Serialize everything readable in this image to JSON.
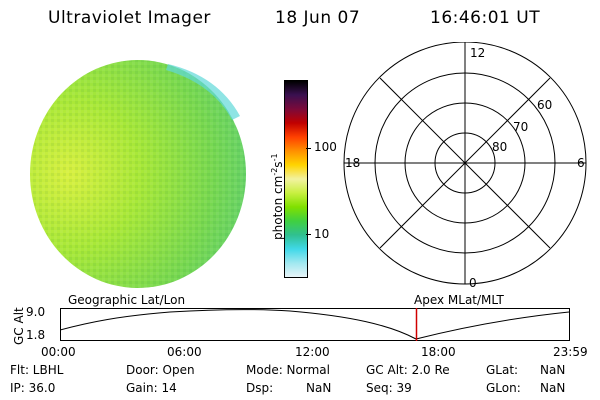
{
  "header": {
    "instrument": "Ultraviolet Imager",
    "date": "18 Jun 07",
    "time": "16:46:01 UT"
  },
  "colorbar": {
    "unit_label": "photon cm-2s-1",
    "ticks": [
      "100",
      "10"
    ],
    "scale": "log",
    "colors": [
      "#000000",
      "#3a1050",
      "#7a0a3a",
      "#c00000",
      "#ff4000",
      "#ff9000",
      "#ffd400",
      "#f2f2a0",
      "#c8f040",
      "#80e000",
      "#40d040",
      "#30c090",
      "#40d8e8",
      "#a0e8f0",
      "#e8f4f8"
    ]
  },
  "polar_plot": {
    "mlt_labels": {
      "top": "12",
      "right": "6",
      "bottom": "0",
      "left": "18"
    },
    "lat_labels": [
      "60",
      "70",
      "80"
    ]
  },
  "timeline": {
    "left_title": "Geographic Lat/Lon",
    "right_title": "Apex MLat/MLT",
    "ylabel": "GC Alt",
    "y_top": "9.0",
    "y_bottom": "1.8",
    "time_ticks": [
      "00:00",
      "06:00",
      "12:00",
      "18:00",
      "23:59"
    ],
    "current_time_fraction": 0.699
  },
  "status": {
    "flt": "Flt: LBHL",
    "ip": "IP: 36.0",
    "door": "Door: Open",
    "gain": "Gain: 14",
    "mode": "Mode: Normal",
    "dsp": "Dsp:",
    "dsp_value": "NaN",
    "gc_alt": "GC Alt: 2.0 Re",
    "seq": "Seq: 39",
    "glat": "GLat:",
    "glat_value": "NaN",
    "glon": "GLon:",
    "glon_value": "NaN"
  }
}
